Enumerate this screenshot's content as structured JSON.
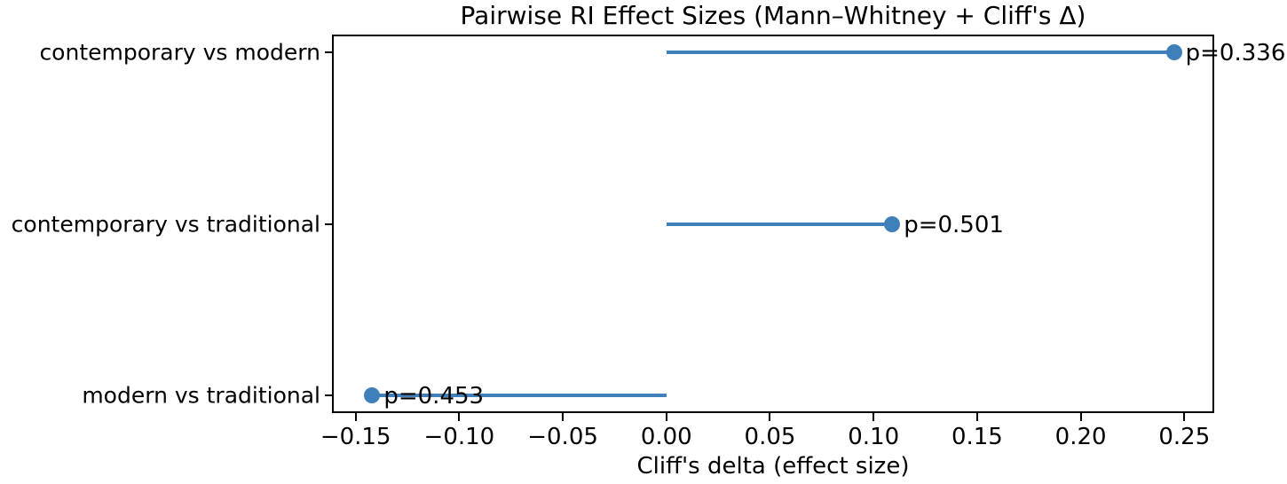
{
  "chart_data": {
    "type": "scatter",
    "variant": "horizontal-lollipop-stem-plot",
    "title": "Pairwise RI Effect Sizes (Mann–Whitney + Cliff's Δ)",
    "xlabel": "Cliff's delta (effect size)",
    "ylabel": "",
    "categories": [
      "contemporary vs modern",
      "contemporary vs traditional",
      "modern vs traditional"
    ],
    "values": [
      0.245,
      0.109,
      -0.142
    ],
    "p_values": [
      0.336,
      0.501,
      0.453
    ],
    "point_labels": [
      "p=0.336",
      "p=0.501",
      "p=0.453"
    ],
    "stem_baseline": 0,
    "xlim": [
      -0.161,
      0.264
    ],
    "xticks": [
      -0.15,
      -0.1,
      -0.05,
      0.0,
      0.05,
      0.1,
      0.15,
      0.2,
      0.25
    ],
    "xtick_labels": [
      "−0.15",
      "−0.10",
      "−0.05",
      "0.00",
      "0.05",
      "0.10",
      "0.15",
      "0.20",
      "0.25"
    ],
    "grid": false,
    "legend": null,
    "colors": {
      "accent": "#4080BA",
      "text": "#000000",
      "spine": "#000000",
      "background": "#FFFFFF"
    }
  }
}
